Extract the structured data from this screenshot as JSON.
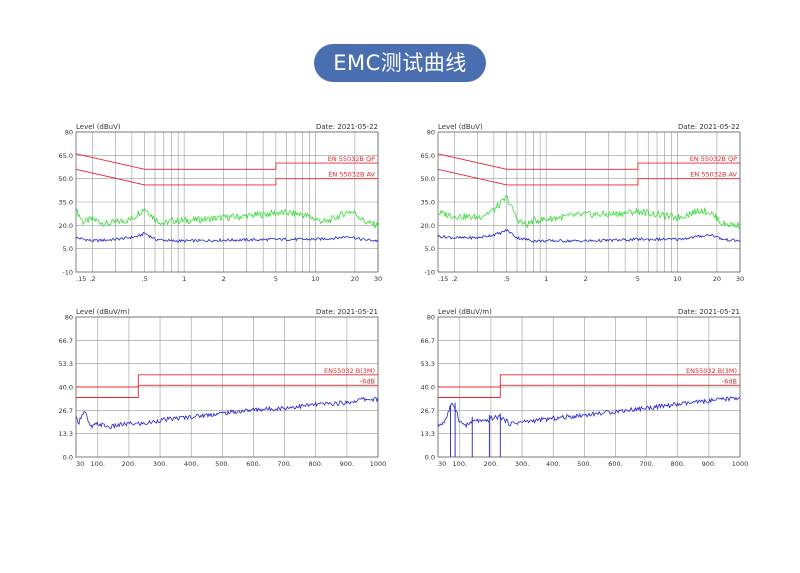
{
  "page_title": "EMC测试曲线",
  "colors": {
    "pill": "#4a6fb1",
    "limit": "#e8262a",
    "qp": "#33dd33",
    "av": "#2222cc",
    "grid": "#9a9a9a"
  },
  "chart_data": [
    {
      "type": "line",
      "ylabel": "Level (dBuV)",
      "date": "Date: 2021-05-22",
      "x_scale": "log",
      "xlim": [
        0.15,
        30
      ],
      "ylim": [
        -10,
        80
      ],
      "y_ticks": [
        80,
        65,
        50,
        35,
        20,
        5,
        -10
      ],
      "y_tick_labels": [
        "80",
        "65.0",
        "50.0",
        "35.0",
        "20.0",
        "5.0",
        "-10"
      ],
      "x_ticks": [
        0.15,
        0.2,
        0.5,
        1,
        2,
        5,
        10,
        20,
        30
      ],
      "x_tick_labels": [
        ".15",
        ".2",
        ".5",
        "1",
        "2",
        "5",
        "10",
        "20",
        "30"
      ],
      "limits": [
        {
          "name": "EN 55032B QP",
          "points": [
            [
              0.15,
              66
            ],
            [
              0.5,
              56
            ],
            [
              5,
              56
            ],
            [
              5,
              60
            ],
            [
              30,
              60
            ]
          ]
        },
        {
          "name": "EN 55032B AV",
          "points": [
            [
              0.15,
              56
            ],
            [
              0.5,
              46
            ],
            [
              5,
              46
            ],
            [
              5,
              50
            ],
            [
              30,
              50
            ]
          ]
        }
      ],
      "series": [
        {
          "role": "qp",
          "points": [
            [
              0.15,
              30
            ],
            [
              0.17,
              22
            ],
            [
              0.2,
              24
            ],
            [
              0.25,
              21
            ],
            [
              0.3,
              22
            ],
            [
              0.4,
              24
            ],
            [
              0.45,
              28
            ],
            [
              0.5,
              31
            ],
            [
              0.6,
              24
            ],
            [
              0.7,
              21
            ],
            [
              0.8,
              23
            ],
            [
              1,
              23
            ],
            [
              1.5,
              24
            ],
            [
              2,
              25
            ],
            [
              3,
              26
            ],
            [
              4,
              27
            ],
            [
              5,
              28
            ],
            [
              6,
              28
            ],
            [
              8,
              27
            ],
            [
              10,
              24
            ],
            [
              12,
              22
            ],
            [
              15,
              26
            ],
            [
              18,
              29
            ],
            [
              20,
              28
            ],
            [
              24,
              22
            ],
            [
              30,
              20
            ]
          ]
        },
        {
          "role": "av",
          "points": [
            [
              0.15,
              12
            ],
            [
              0.2,
              10
            ],
            [
              0.3,
              11
            ],
            [
              0.45,
              13
            ],
            [
              0.5,
              15
            ],
            [
              0.6,
              11
            ],
            [
              0.8,
              10
            ],
            [
              1,
              10
            ],
            [
              2,
              10.5
            ],
            [
              5,
              11
            ],
            [
              10,
              11
            ],
            [
              15,
              12
            ],
            [
              18,
              13
            ],
            [
              22,
              11
            ],
            [
              30,
              10
            ]
          ]
        }
      ]
    },
    {
      "type": "line",
      "ylabel": "Level (dBuV)",
      "date": "Date: 2021-05-22",
      "x_scale": "log",
      "xlim": [
        0.15,
        30
      ],
      "ylim": [
        -10,
        80
      ],
      "y_ticks": [
        80,
        65,
        50,
        35,
        20,
        5,
        -10
      ],
      "y_tick_labels": [
        "80",
        "65.0",
        "50.0",
        "35.0",
        "20.0",
        "5.0",
        "-10"
      ],
      "x_ticks": [
        0.15,
        0.2,
        0.5,
        1,
        2,
        5,
        10,
        20,
        30
      ],
      "x_tick_labels": [
        ".15",
        ".2",
        ".5",
        "1",
        "2",
        "5",
        "10",
        "20",
        "30"
      ],
      "limits": [
        {
          "name": "EN 55032B QP",
          "points": [
            [
              0.15,
              66
            ],
            [
              0.5,
              56
            ],
            [
              5,
              56
            ],
            [
              5,
              60
            ],
            [
              30,
              60
            ]
          ]
        },
        {
          "name": "EN 55032B AV",
          "points": [
            [
              0.15,
              56
            ],
            [
              0.5,
              46
            ],
            [
              5,
              46
            ],
            [
              5,
              50
            ],
            [
              30,
              50
            ]
          ]
        }
      ],
      "series": [
        {
          "role": "qp",
          "points": [
            [
              0.15,
              28
            ],
            [
              0.2,
              26
            ],
            [
              0.3,
              25
            ],
            [
              0.4,
              30
            ],
            [
              0.45,
              34
            ],
            [
              0.5,
              38
            ],
            [
              0.6,
              24
            ],
            [
              0.7,
              20
            ],
            [
              0.8,
              23
            ],
            [
              1,
              24
            ],
            [
              1.5,
              26
            ],
            [
              2,
              27
            ],
            [
              3,
              27
            ],
            [
              4,
              28
            ],
            [
              5,
              29
            ],
            [
              6,
              28
            ],
            [
              8,
              26
            ],
            [
              10,
              25
            ],
            [
              12,
              27
            ],
            [
              15,
              30
            ],
            [
              18,
              28
            ],
            [
              22,
              21
            ],
            [
              30,
              20
            ]
          ]
        },
        {
          "role": "av",
          "points": [
            [
              0.15,
              13
            ],
            [
              0.2,
              12
            ],
            [
              0.3,
              12
            ],
            [
              0.45,
              15
            ],
            [
              0.5,
              17
            ],
            [
              0.6,
              12
            ],
            [
              0.8,
              10
            ],
            [
              1,
              10
            ],
            [
              2,
              10
            ],
            [
              5,
              11
            ],
            [
              10,
              11
            ],
            [
              15,
              13
            ],
            [
              18,
              14
            ],
            [
              22,
              11
            ],
            [
              30,
              10
            ]
          ]
        }
      ]
    },
    {
      "type": "line",
      "ylabel": "Level (dBuV/m)",
      "date": "Date: 2021-05-21",
      "x_scale": "linear",
      "xlim": [
        30,
        1000
      ],
      "ylim": [
        0,
        80
      ],
      "y_ticks": [
        80,
        66.7,
        53.3,
        40,
        26.7,
        13.3,
        0
      ],
      "y_tick_labels": [
        "80",
        "66.7",
        "53.3",
        "40.0",
        "26.7",
        "13.3",
        "0.0"
      ],
      "x_ticks": [
        30,
        100,
        200,
        300,
        400,
        500,
        600,
        700,
        800,
        900,
        1000
      ],
      "x_tick_labels": [
        "30",
        "100.",
        "200.",
        "300.",
        "400.",
        "500.",
        "600.",
        "700.",
        "800.",
        "900.",
        "1000"
      ],
      "limits": [
        {
          "name": "EN55032 B(3M)",
          "points": [
            [
              30,
              40
            ],
            [
              230,
              40
            ],
            [
              230,
              47
            ],
            [
              1000,
              47
            ]
          ]
        },
        {
          "name": "-6dB",
          "points": [
            [
              30,
              34
            ],
            [
              230,
              34
            ],
            [
              230,
              41
            ],
            [
              1000,
              41
            ]
          ]
        }
      ],
      "series": [
        {
          "role": "meas",
          "points": [
            [
              30,
              22
            ],
            [
              40,
              20
            ],
            [
              50,
              25
            ],
            [
              60,
              26
            ],
            [
              70,
              19
            ],
            [
              80,
              17
            ],
            [
              100,
              19
            ],
            [
              120,
              18
            ],
            [
              140,
              17
            ],
            [
              160,
              18
            ],
            [
              200,
              19
            ],
            [
              250,
              19
            ],
            [
              300,
              21
            ],
            [
              400,
              23
            ],
            [
              500,
              25
            ],
            [
              600,
              27
            ],
            [
              700,
              28
            ],
            [
              800,
              30
            ],
            [
              900,
              31
            ],
            [
              950,
              33
            ],
            [
              1000,
              33
            ]
          ]
        }
      ]
    },
    {
      "type": "line",
      "ylabel": "Level (dBuV/m)",
      "date": "Date: 2021-05-21",
      "x_scale": "linear",
      "xlim": [
        30,
        1000
      ],
      "ylim": [
        0,
        80
      ],
      "y_ticks": [
        80,
        66.7,
        53.3,
        40,
        26.7,
        13.3,
        0
      ],
      "y_tick_labels": [
        "80",
        "66.7",
        "53.3",
        "40.0",
        "26.7",
        "13.3",
        "0.0"
      ],
      "x_ticks": [
        30,
        100,
        200,
        300,
        400,
        500,
        600,
        700,
        800,
        900,
        1000
      ],
      "x_tick_labels": [
        "30",
        "100.",
        "200.",
        "300.",
        "400.",
        "500.",
        "600.",
        "700.",
        "800.",
        "900.",
        "1000"
      ],
      "limits": [
        {
          "name": "EN55032 B(3M)",
          "points": [
            [
              30,
              40
            ],
            [
              230,
              40
            ],
            [
              230,
              47
            ],
            [
              1000,
              47
            ]
          ]
        },
        {
          "name": "-6dB",
          "points": [
            [
              30,
              34
            ],
            [
              230,
              34
            ],
            [
              230,
              41
            ],
            [
              1000,
              41
            ]
          ]
        }
      ],
      "series": [
        {
          "role": "meas",
          "points": [
            [
              30,
              18
            ],
            [
              50,
              20
            ],
            [
              60,
              24
            ],
            [
              70,
              29
            ],
            [
              80,
              30
            ],
            [
              90,
              26
            ],
            [
              100,
              20
            ],
            [
              120,
              18
            ],
            [
              150,
              21
            ],
            [
              180,
              20
            ],
            [
              200,
              22
            ],
            [
              230,
              23
            ],
            [
              260,
              19
            ],
            [
              300,
              20
            ],
            [
              400,
              22
            ],
            [
              500,
              24
            ],
            [
              600,
              26
            ],
            [
              700,
              28
            ],
            [
              800,
              30
            ],
            [
              900,
              32
            ],
            [
              1000,
              34
            ]
          ]
        },
        {
          "role": "spikes",
          "points": [
            [
              70,
              30
            ],
            [
              85,
              31
            ],
            [
              140,
              23
            ],
            [
              195,
              24
            ],
            [
              230,
              25
            ]
          ]
        }
      ]
    }
  ]
}
